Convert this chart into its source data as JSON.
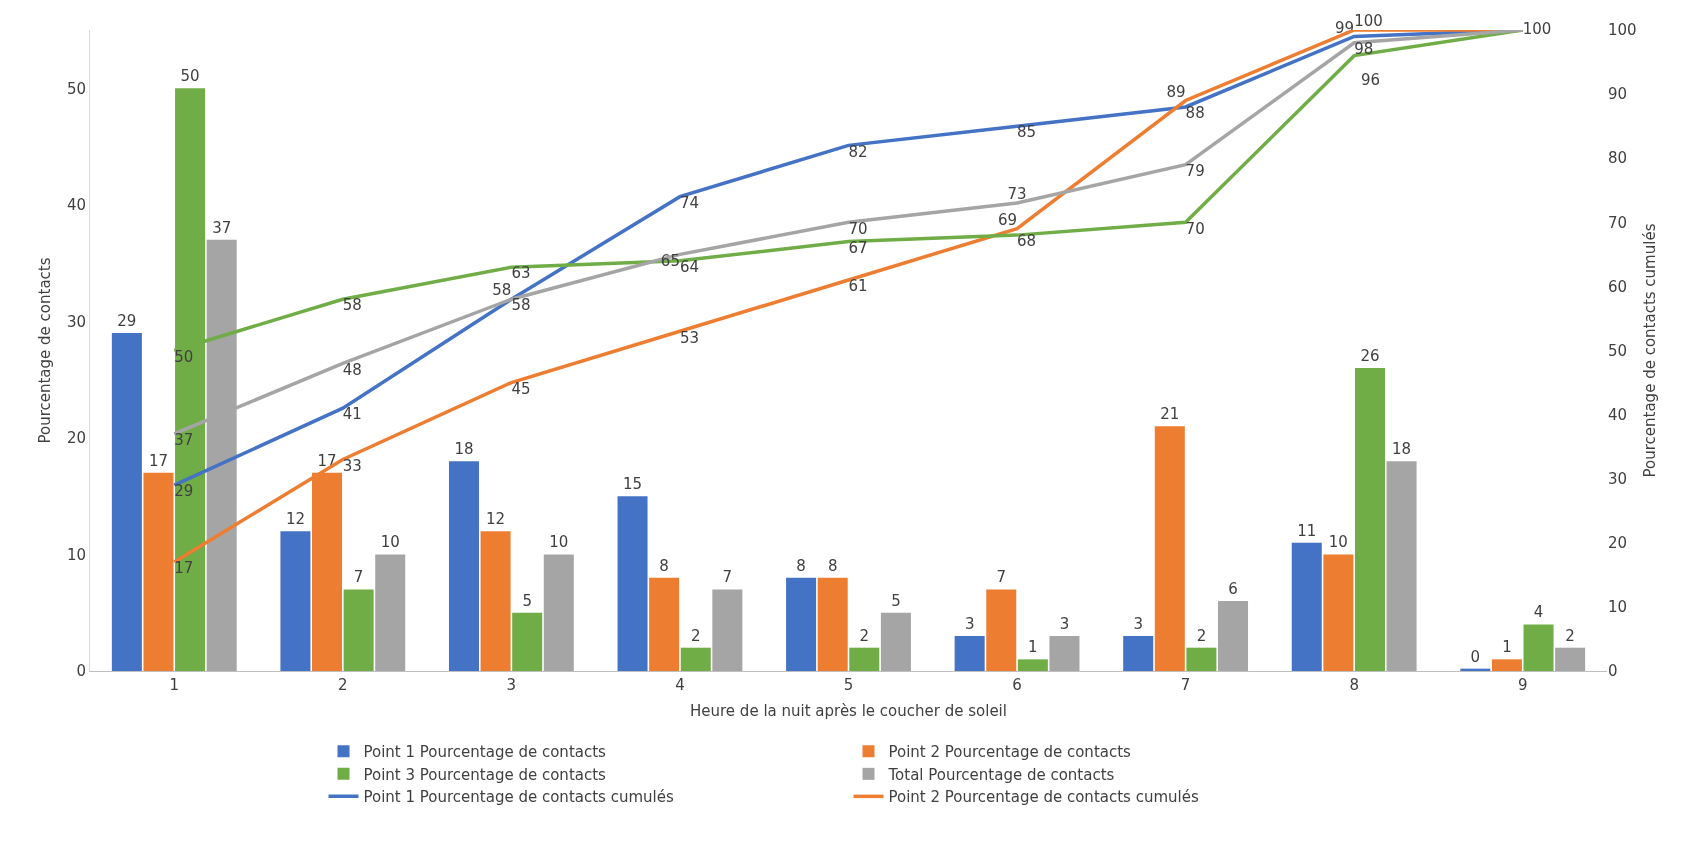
{
  "chart_data": {
    "type": "bar",
    "xlabel": "Heure de la nuit après le coucher de soleil",
    "ylabel": "Pourcentage de contacts",
    "y2label": "Pourcentage de contacts cumulés",
    "categories": [
      "1",
      "2",
      "3",
      "4",
      "5",
      "6",
      "7",
      "8",
      "9"
    ],
    "series": [
      {
        "name": "Point 1 Pourcentage de contacts",
        "color": "#4472c4",
        "values": [
          29,
          12,
          18,
          15,
          8,
          3,
          3,
          11,
          0.2
        ],
        "value_labels": [
          "29",
          "12",
          "18",
          "15",
          "8",
          "3",
          "3",
          "11",
          "0"
        ]
      },
      {
        "name": "Point 2 Pourcentage de contacts",
        "color": "#ed7d31",
        "values": [
          17,
          17,
          12,
          8,
          8,
          7,
          21,
          10,
          1
        ]
      },
      {
        "name": "Point 3 Pourcentage de contacts",
        "color": "#70ad47",
        "values": [
          50,
          7,
          5,
          2,
          2,
          1,
          2,
          26,
          4
        ]
      },
      {
        "name": "Total Pourcentage de contacts",
        "color": "#a5a5a5",
        "values": [
          37,
          10,
          10,
          7,
          5,
          3,
          6,
          18,
          2
        ]
      },
      {
        "type": "line",
        "axis": "y2",
        "name": "Point 1 Pourcentage de contacts cumulés",
        "color": "#4472c4",
        "values": [
          29,
          41,
          58,
          74,
          82,
          85,
          88,
          99,
          100
        ]
      },
      {
        "type": "line",
        "axis": "y2",
        "name": "Point 2 Pourcentage de contacts cumulés",
        "color": "#ed7d31",
        "values": [
          17,
          33,
          45,
          53,
          61,
          69,
          89,
          100,
          100
        ],
        "value_labels": [
          "17",
          "33",
          "45",
          "53",
          "61",
          "69",
          "89",
          "100",
          null
        ]
      },
      {
        "type": "line",
        "axis": "y2",
        "color": "#70ad47",
        "values": [
          50,
          58,
          63,
          64,
          67,
          68,
          70,
          96,
          100
        ],
        "value_labels": [
          "50",
          "58",
          "63",
          "64",
          "67",
          "68",
          "70",
          "96",
          null
        ]
      },
      {
        "type": "line",
        "axis": "y2",
        "color": "#a5a5a5",
        "values": [
          37,
          48,
          58,
          65,
          70,
          73,
          79,
          98,
          100
        ],
        "value_labels": [
          "37",
          "48",
          "58",
          "65",
          "70",
          "73",
          "79",
          "98",
          null
        ]
      }
    ],
    "ylim": [
      0,
      55
    ],
    "yticks": [
      0,
      10,
      20,
      30,
      40,
      50
    ],
    "y2lim": [
      0,
      100
    ],
    "y2ticks": [
      0,
      10,
      20,
      30,
      40,
      50,
      60,
      70,
      80,
      90,
      100
    ],
    "data_labels": true,
    "legend": "bottom",
    "grid": false,
    "marker": "none",
    "line_style": "solid"
  }
}
